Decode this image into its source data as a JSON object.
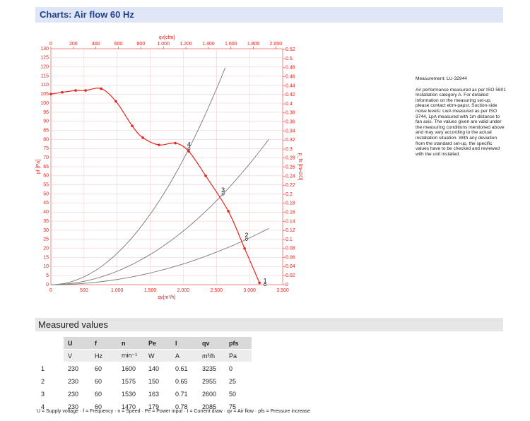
{
  "header": {
    "title": "Charts: Air flow 60 Hz"
  },
  "chart_data": {
    "type": "line",
    "xlabel": "qv[m³/h]",
    "x2label": "qv[cfm]",
    "ylabel": "pf [Pa]",
    "y2label": "p_fs [inH2O]",
    "xlim": [
      0,
      3500
    ],
    "ylim": [
      0,
      130
    ],
    "x2lim": [
      0,
      2060
    ],
    "y2lim": [
      0,
      0.522
    ],
    "xticks": [
      0,
      500,
      {
        "value": 1000,
        "label": "1.000"
      },
      {
        "value": 1500,
        "label": "1.500"
      },
      {
        "value": 2000,
        "label": "2.000"
      },
      {
        "value": 2500,
        "label": "2.500"
      },
      {
        "value": 3000,
        "label": "3.000"
      },
      {
        "value": 3500,
        "label": "3.500"
      }
    ],
    "x2ticks": [
      0,
      200,
      400,
      600,
      800,
      {
        "value": 1000,
        "label": "1.000"
      },
      {
        "value": 1200,
        "label": "1.200"
      },
      {
        "value": 1400,
        "label": "1.400"
      },
      {
        "value": 1600,
        "label": "1.600"
      },
      {
        "value": 1800,
        "label": "1.800"
      },
      {
        "value": 2000,
        "label": "2.000"
      }
    ],
    "yticks": [
      0,
      5,
      10,
      15,
      20,
      25,
      30,
      35,
      40,
      45,
      50,
      55,
      60,
      65,
      70,
      75,
      80,
      85,
      90,
      95,
      100,
      105,
      110,
      115,
      120,
      125,
      130
    ],
    "y2ticks": [
      0,
      0.02,
      0.04,
      0.06,
      0.08,
      0.1,
      0.12,
      0.14,
      0.16,
      0.18,
      0.2,
      0.22,
      0.24,
      0.26,
      0.28,
      0.3,
      0.32,
      0.34,
      0.36,
      0.38,
      0.4,
      0.42,
      0.44,
      0.46,
      0.48,
      0.5,
      0.52
    ],
    "grid": true,
    "series": [
      {
        "color": "#e8231d",
        "x": [
          0,
          171,
          374,
          523,
          758,
          982,
          1228,
          1388,
          1633,
          1879,
          2081,
          2337,
          2679,
          2925,
          3150
        ],
        "values": [
          105,
          106,
          107,
          107,
          108,
          101,
          87.5,
          81,
          77,
          78,
          73.5,
          60,
          40.5,
          20,
          1
        ]
      }
    ],
    "curve_color": "#777777"
  },
  "notes": {
    "measurement": "Measurement: LU-32944",
    "text": "Air performance measured as per ISO 5801 Installation category A. For detailed information on the measuring set-up, please contact ebm-papst. Suction-side noise levels: LwA measured as per ISO 3744, LpA measured with 1m distance to fan axis. The values given are valid under the measuring conditions mentioned above and may vary according to the actual installation situation. With any deviation from the standard set-up, the specific values have to be checked and reviewed with the unit installed."
  },
  "table": {
    "title": "Measured values",
    "headers": [
      "U",
      "f",
      "n",
      "Pe",
      "I",
      "qv",
      "pfs"
    ],
    "units": [
      "V",
      "Hz",
      "min⁻¹",
      "W",
      "A",
      "m³/h",
      "Pa"
    ],
    "rows": [
      [
        1,
        230,
        60,
        1600,
        140,
        0.61,
        3235,
        0
      ],
      [
        2,
        230,
        60,
        1575,
        150,
        0.65,
        2955,
        25
      ],
      [
        3,
        230,
        60,
        1530,
        163,
        0.71,
        2600,
        50
      ],
      [
        4,
        230,
        60,
        1470,
        179,
        0.78,
        2085,
        75
      ]
    ],
    "footnote": "U = Supply voltage · f = Frequency · n = Speed · Pe = Power input · I = Current draw · qv = Air flow · pfs = Pressure increase"
  }
}
